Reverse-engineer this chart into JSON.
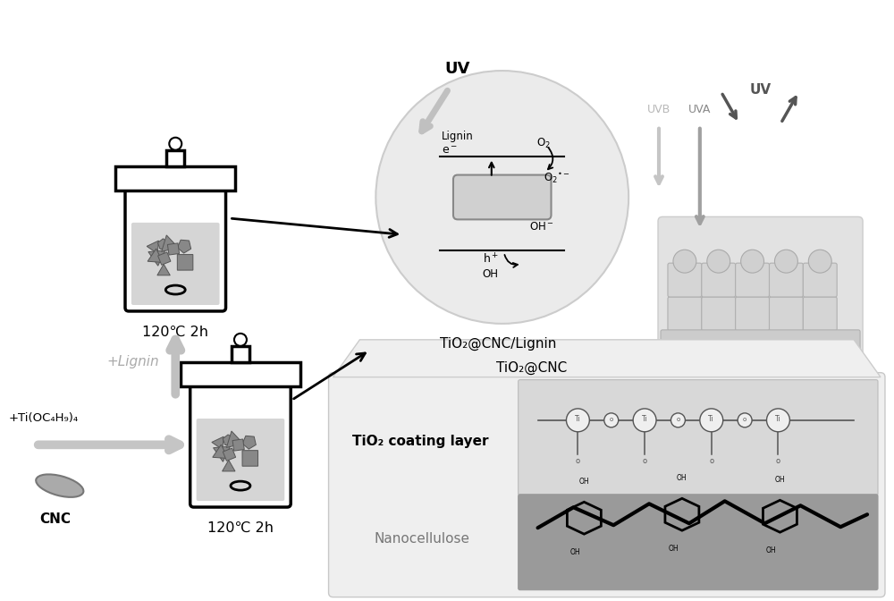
{
  "bg_color": "#ffffff",
  "tio2_label": "TiO₂@CNC/Lignin",
  "tio2_cnc_label": "TiO₂@CNC",
  "cnc_label": "CNC",
  "temp_label": "120℃ 2h",
  "plus_lignin": "+Lignin",
  "plus_ti": "+Ti(OC₄H₉)₄",
  "tio2_coating": "TiO₂ coating layer",
  "nanocellulose": "Nanocellulose",
  "uv_label": "UV",
  "uvb_label": "UVB",
  "uva_label": "UVA"
}
